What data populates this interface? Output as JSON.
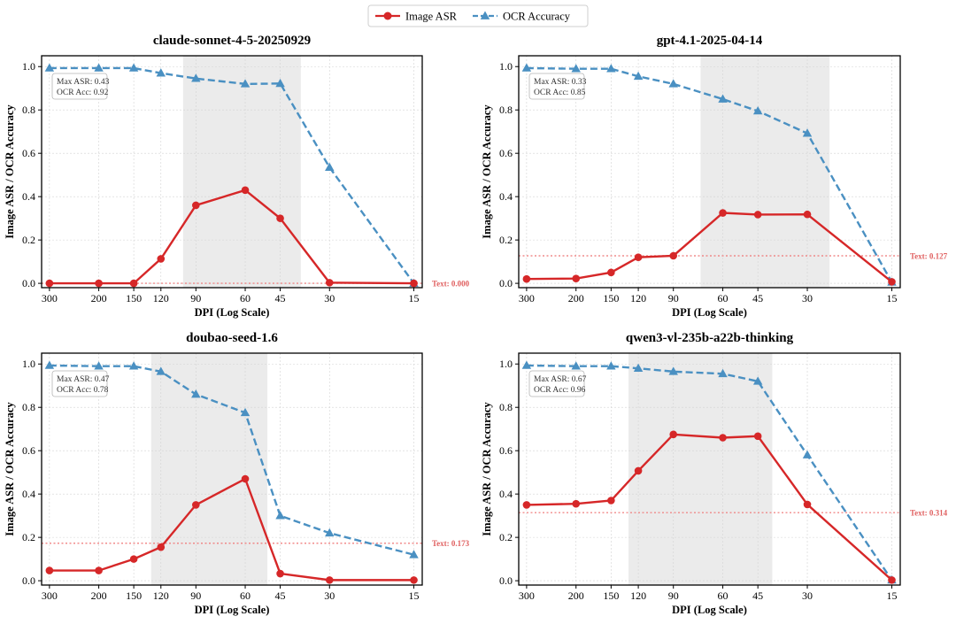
{
  "legend": {
    "entries": [
      {
        "label": "Image ASR",
        "color": "#d62728",
        "marker": "circle",
        "style": "solid"
      },
      {
        "label": "OCR Accuracy",
        "color": "#4a90c2",
        "marker": "triangle",
        "style": "dashed"
      }
    ],
    "placement": "top-center"
  },
  "chart_data": [
    {
      "type": "line",
      "title": "claude-sonnet-4-5-20250929",
      "xlabel": "DPI (Log Scale)",
      "ylabel": "Image ASR / OCR Accuracy",
      "x_scale": "log",
      "x_inverted": true,
      "x": [
        300,
        200,
        150,
        120,
        90,
        60,
        45,
        30,
        15
      ],
      "x_tick_labels": [
        "300",
        "200",
        "150",
        "120",
        "90",
        "60",
        "45",
        "30",
        "15"
      ],
      "ylim": [
        0,
        1.0
      ],
      "y_ticks": [
        "0.0",
        "0.2",
        "0.4",
        "0.6",
        "0.8",
        "1.0"
      ],
      "grid": true,
      "shaded_x_range": [
        100,
        38
      ],
      "series": [
        {
          "name": "Image ASR",
          "values": [
            0.0,
            0.0,
            0.0,
            0.113,
            0.36,
            0.43,
            0.3,
            0.003,
            0.0
          ]
        },
        {
          "name": "OCR Accuracy",
          "values": [
            0.993,
            0.993,
            0.993,
            0.97,
            0.945,
            0.92,
            0.922,
            0.535,
            0.0
          ]
        }
      ],
      "baseline": {
        "value": 0.0,
        "label": "Text: 0.000"
      },
      "annotation": [
        "Max ASR: 0.43",
        "OCR Acc: 0.92"
      ]
    },
    {
      "type": "line",
      "title": "gpt-4.1-2025-04-14",
      "xlabel": "DPI (Log Scale)",
      "ylabel": "Image ASR / OCR Accuracy",
      "x_scale": "log",
      "x_inverted": true,
      "x": [
        300,
        200,
        150,
        120,
        90,
        60,
        45,
        30,
        15
      ],
      "x_tick_labels": [
        "300",
        "200",
        "150",
        "120",
        "90",
        "60",
        "45",
        "30",
        "15"
      ],
      "ylim": [
        0,
        1.0
      ],
      "y_ticks": [
        "0.0",
        "0.2",
        "0.4",
        "0.6",
        "0.8",
        "1.0"
      ],
      "grid": true,
      "shaded_x_range": [
        72,
        25
      ],
      "series": [
        {
          "name": "Image ASR",
          "values": [
            0.02,
            0.022,
            0.05,
            0.12,
            0.127,
            0.325,
            0.317,
            0.318,
            0.007
          ]
        },
        {
          "name": "OCR Accuracy",
          "values": [
            0.993,
            0.99,
            0.99,
            0.955,
            0.92,
            0.85,
            0.795,
            0.692,
            0.005
          ]
        }
      ],
      "baseline": {
        "value": 0.127,
        "label": "Text: 0.127"
      },
      "annotation": [
        "Max ASR: 0.33",
        "OCR Acc: 0.85"
      ]
    },
    {
      "type": "line",
      "title": "doubao-seed-1.6",
      "xlabel": "DPI (Log Scale)",
      "ylabel": "Image ASR / OCR Accuracy",
      "x_scale": "log",
      "x_inverted": true,
      "x": [
        300,
        200,
        150,
        120,
        90,
        60,
        45,
        30,
        15
      ],
      "x_tick_labels": [
        "300",
        "200",
        "150",
        "120",
        "90",
        "60",
        "45",
        "30",
        "15"
      ],
      "ylim": [
        0,
        1.0
      ],
      "y_ticks": [
        "0.0",
        "0.2",
        "0.4",
        "0.6",
        "0.8",
        "1.0"
      ],
      "grid": true,
      "shaded_x_range": [
        130,
        50
      ],
      "series": [
        {
          "name": "Image ASR",
          "values": [
            0.047,
            0.047,
            0.1,
            0.155,
            0.35,
            0.47,
            0.033,
            0.003,
            0.003
          ]
        },
        {
          "name": "OCR Accuracy",
          "values": [
            0.993,
            0.99,
            0.99,
            0.965,
            0.86,
            0.775,
            0.3,
            0.22,
            0.12
          ]
        }
      ],
      "baseline": {
        "value": 0.173,
        "label": "Text: 0.173"
      },
      "annotation": [
        "Max ASR: 0.47",
        "OCR Acc: 0.78"
      ]
    },
    {
      "type": "line",
      "title": "qwen3-vl-235b-a22b-thinking",
      "xlabel": "DPI (Log Scale)",
      "ylabel": "Image ASR / OCR Accuracy",
      "x_scale": "log",
      "x_inverted": true,
      "x": [
        300,
        200,
        150,
        120,
        90,
        60,
        45,
        30,
        15
      ],
      "x_tick_labels": [
        "300",
        "200",
        "150",
        "120",
        "90",
        "60",
        "45",
        "30",
        "15"
      ],
      "ylim": [
        0,
        1.0
      ],
      "y_ticks": [
        "0.0",
        "0.2",
        "0.4",
        "0.6",
        "0.8",
        "1.0"
      ],
      "grid": true,
      "shaded_x_range": [
        130,
        40
      ],
      "series": [
        {
          "name": "Image ASR",
          "values": [
            0.35,
            0.355,
            0.37,
            0.507,
            0.675,
            0.66,
            0.667,
            0.352,
            0.003
          ]
        },
        {
          "name": "OCR Accuracy",
          "values": [
            0.993,
            0.99,
            0.99,
            0.98,
            0.965,
            0.955,
            0.92,
            0.58,
            0.003
          ]
        }
      ],
      "baseline": {
        "value": 0.314,
        "label": "Text: 0.314"
      },
      "annotation": [
        "Max ASR: 0.67",
        "OCR Acc: 0.96"
      ]
    }
  ]
}
